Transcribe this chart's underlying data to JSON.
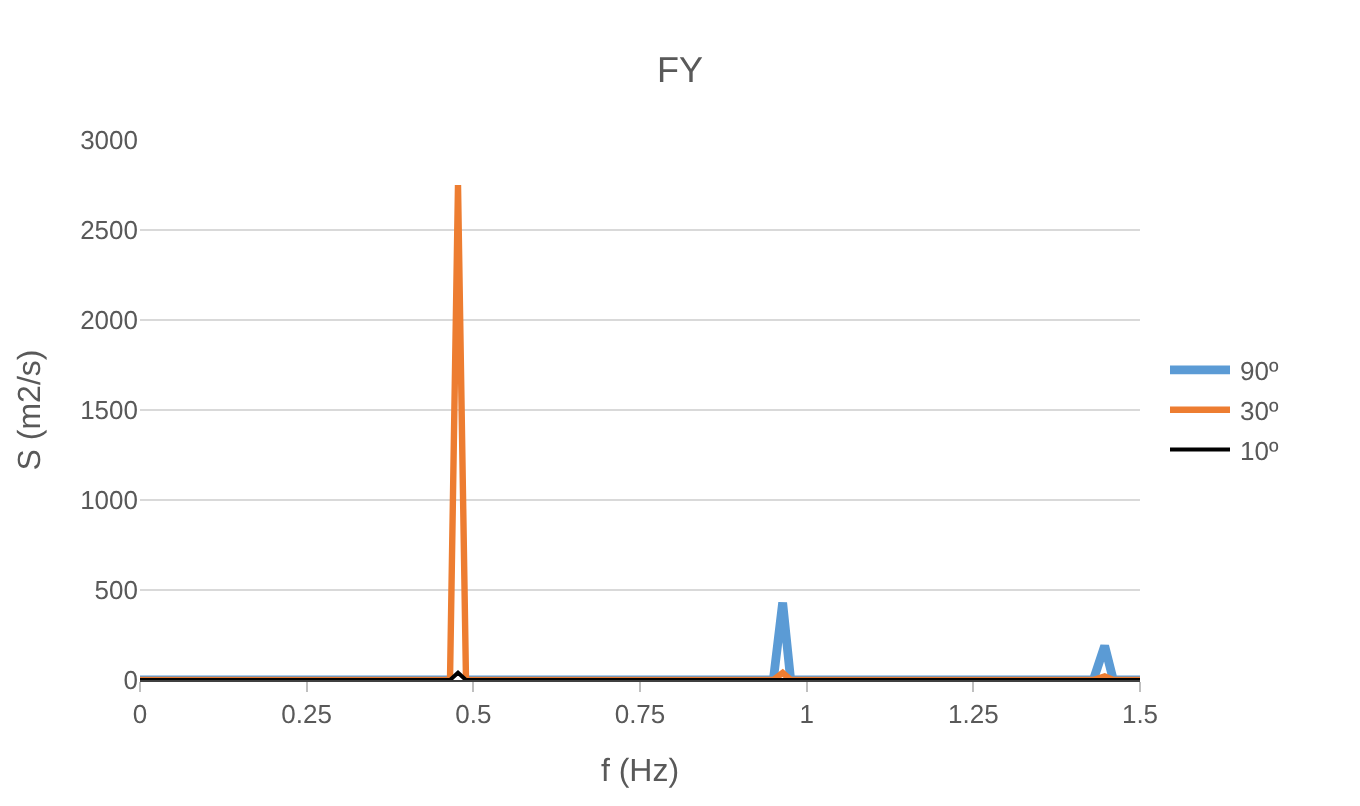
{
  "chart_data": {
    "type": "line",
    "title": "FY",
    "xlabel": "f (Hz)",
    "ylabel": "S (m2/s)",
    "xlim": [
      0,
      1.5
    ],
    "xticks": [
      0,
      0.25,
      0.5,
      0.75,
      1,
      1.25,
      1.5
    ],
    "ylim": [
      0,
      3000
    ],
    "yticks": [
      0,
      500,
      1000,
      1500,
      2000,
      2500,
      3000
    ],
    "grid": "y",
    "legend": "right",
    "marker": "none",
    "series": [
      {
        "name": "90º",
        "color": "#5b9bd5",
        "x": [
          0,
          0.465,
          0.477,
          0.489,
          0.5,
          0.95,
          0.964,
          0.976,
          1.43,
          1.447,
          1.46,
          1.5
        ],
        "values": [
          0,
          0,
          null,
          0,
          0,
          0,
          430,
          0,
          0,
          190,
          0,
          0
        ]
      },
      {
        "name": "30º",
        "color": "#ed7d31",
        "x": [
          0,
          0.465,
          0.477,
          0.489,
          0.5,
          0.95,
          0.964,
          0.976,
          1.43,
          1.447,
          1.46,
          1.5
        ],
        "values": [
          0,
          0,
          2750,
          0,
          0,
          0,
          40,
          0,
          0,
          20,
          0,
          0
        ]
      },
      {
        "name": "10º",
        "color": "#000000",
        "x": [
          0,
          0.465,
          0.477,
          0.489,
          0.5,
          0.95,
          0.964,
          0.976,
          1.43,
          1.447,
          1.46,
          1.5
        ],
        "values": [
          0,
          0,
          40,
          0,
          0,
          0,
          0,
          0,
          0,
          0,
          0,
          0
        ]
      }
    ]
  }
}
